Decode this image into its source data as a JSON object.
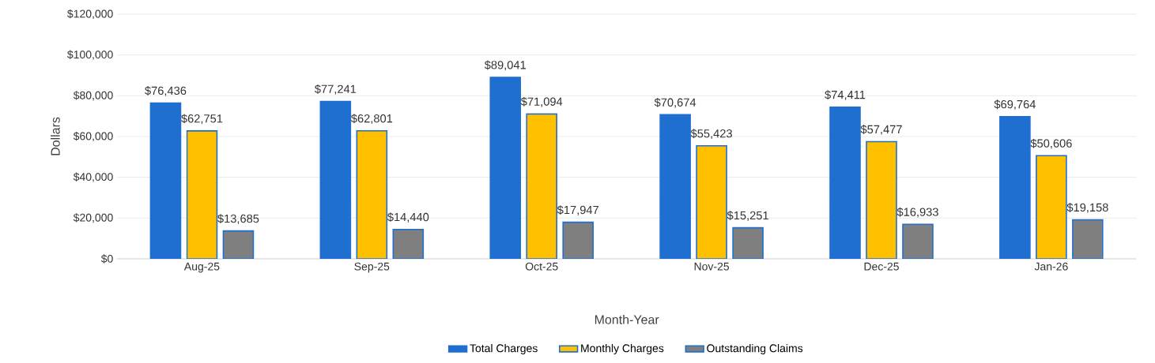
{
  "chart_data": {
    "type": "bar",
    "xlabel": "Month-Year",
    "ylabel": "Dollars",
    "categories": [
      "Aug-25",
      "Sep-25",
      "Oct-25",
      "Nov-25",
      "Dec-25",
      "Jan-26"
    ],
    "series": [
      {
        "name": "Total Charges",
        "color": "#1f6fd1",
        "values": [
          76436,
          77241,
          89041,
          70674,
          74411,
          69764
        ],
        "value_labels": [
          "$76,436",
          "$77,241",
          "$89,041",
          "$70,674",
          "$74,411",
          "$69,764"
        ]
      },
      {
        "name": "Monthly Charges",
        "color": "#ffc000",
        "values": [
          62751,
          62801,
          71094,
          55423,
          57477,
          50606
        ],
        "value_labels": [
          "$62,751",
          "$62,801",
          "$71,094",
          "$55,423",
          "$57,477",
          "$50,606"
        ]
      },
      {
        "name": "Outstanding Claims",
        "color": "#7f7f7f",
        "values": [
          13685,
          14440,
          17947,
          15251,
          16933,
          19158
        ],
        "value_labels": [
          "$13,685",
          "$14,440",
          "$17,947",
          "$15,251",
          "$16,933",
          "$19,158"
        ]
      }
    ],
    "ylim": [
      0,
      120000
    ],
    "yticks": [
      {
        "value": 0,
        "label": "$0"
      },
      {
        "value": 20000,
        "label": "$20,000"
      },
      {
        "value": 40000,
        "label": "$40,000"
      },
      {
        "value": 60000,
        "label": "$60,000"
      },
      {
        "value": 80000,
        "label": "$80,000"
      },
      {
        "value": 100000,
        "label": "$100,000"
      },
      {
        "value": 120000,
        "label": "$120,000"
      }
    ],
    "grid": "y",
    "legend": "bottom"
  }
}
